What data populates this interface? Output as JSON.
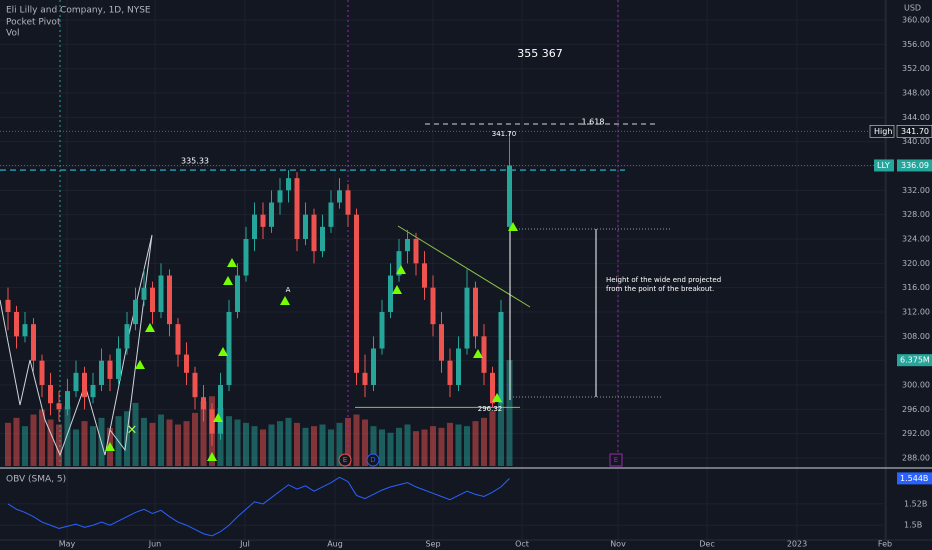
{
  "chart_data": {
    "type": "candlestick",
    "title": "Eli Lilly and Company, 1D, NYSE",
    "indicators": [
      "Pocket Pivot",
      "Vol"
    ],
    "currency": "USD",
    "ylim": [
      288,
      360
    ],
    "yticks": [
      {
        "value": 288,
        "label": "288.00"
      },
      {
        "value": 292,
        "label": "292.00"
      },
      {
        "value": 296,
        "label": "296.00"
      },
      {
        "value": 300,
        "label": "300.00"
      },
      {
        "value": 304,
        "label": "304.00"
      },
      {
        "value": 308,
        "label": "308.00"
      },
      {
        "value": 312,
        "label": "312.00"
      },
      {
        "value": 316,
        "label": "316.00"
      },
      {
        "value": 320,
        "label": "320.00"
      },
      {
        "value": 324,
        "label": "324.00"
      },
      {
        "value": 328,
        "label": "328.00"
      },
      {
        "value": 332,
        "label": "332.00"
      },
      {
        "value": 336,
        "label": "336.00"
      },
      {
        "value": 340,
        "label": "340.00"
      },
      {
        "value": 344,
        "label": "344.00"
      },
      {
        "value": 348,
        "label": "348.00"
      },
      {
        "value": 352,
        "label": "352.00"
      },
      {
        "value": 356,
        "label": "356.00"
      },
      {
        "value": 360,
        "label": "360.00"
      }
    ],
    "grid": true,
    "x_labels": [
      "May",
      "Jun",
      "Jul",
      "Aug",
      "Sep",
      "Oct",
      "Nov",
      "Dec",
      "2023",
      "Feb"
    ],
    "up_color": "#26a69a",
    "down_color": "#ef5350",
    "ohlc": [
      [
        314,
        316,
        309,
        312
      ],
      [
        312,
        313,
        306,
        308
      ],
      [
        308,
        312,
        307,
        310
      ],
      [
        310,
        311,
        302,
        304
      ],
      [
        304,
        305,
        298,
        300
      ],
      [
        300,
        302,
        295,
        297
      ],
      [
        297,
        299,
        294,
        296
      ],
      [
        296,
        301,
        295,
        299
      ],
      [
        299,
        304,
        298,
        302
      ],
      [
        302,
        303,
        296,
        298
      ],
      [
        298,
        302,
        297,
        300
      ],
      [
        300,
        306,
        299,
        304
      ],
      [
        304,
        305,
        299,
        301
      ],
      [
        301,
        308,
        300,
        306
      ],
      [
        306,
        312,
        305,
        310
      ],
      [
        310,
        316,
        309,
        314
      ],
      [
        314,
        319,
        313,
        316
      ],
      [
        316,
        317,
        310,
        312
      ],
      [
        312,
        320,
        311,
        318
      ],
      [
        318,
        319,
        308,
        310
      ],
      [
        310,
        311,
        303,
        305
      ],
      [
        305,
        307,
        300,
        302
      ],
      [
        302,
        303,
        296,
        298
      ],
      [
        298,
        300,
        294,
        296
      ],
      [
        296,
        297,
        290,
        292
      ],
      [
        292,
        302,
        291,
        300
      ],
      [
        300,
        314,
        299,
        312
      ],
      [
        312,
        320,
        311,
        318
      ],
      [
        318,
        326,
        317,
        324
      ],
      [
        324,
        330,
        322,
        328
      ],
      [
        328,
        330,
        324,
        326
      ],
      [
        326,
        332,
        325,
        330
      ],
      [
        330,
        334,
        328,
        332
      ],
      [
        332,
        335.33,
        330,
        334
      ],
      [
        334,
        335,
        322,
        324
      ],
      [
        324,
        330,
        323,
        328
      ],
      [
        328,
        329,
        320,
        322
      ],
      [
        322,
        328,
        321,
        326
      ],
      [
        326,
        332,
        325,
        330
      ],
      [
        330,
        334,
        329,
        332
      ],
      [
        332,
        333,
        326,
        328
      ],
      [
        328,
        329,
        300,
        302
      ],
      [
        302,
        305,
        298,
        300
      ],
      [
        300,
        308,
        299,
        306
      ],
      [
        306,
        314,
        305,
        312
      ],
      [
        312,
        320,
        311,
        318
      ],
      [
        318,
        324,
        317,
        322
      ],
      [
        322,
        325.5,
        320,
        324
      ],
      [
        324,
        325,
        318,
        320
      ],
      [
        320,
        322,
        314,
        316
      ],
      [
        316,
        318,
        308,
        310
      ],
      [
        310,
        312,
        302,
        304
      ],
      [
        304,
        306,
        298,
        300
      ],
      [
        300,
        308,
        299,
        306
      ],
      [
        306,
        319,
        305,
        316
      ],
      [
        316,
        317,
        306,
        308
      ],
      [
        308,
        310,
        300,
        302
      ],
      [
        302,
        303,
        296.32,
        297
      ],
      [
        297,
        314,
        296.5,
        312
      ],
      [
        326,
        341.7,
        325,
        336.09
      ]
    ],
    "high_tag": {
      "name": "High",
      "value": 341.7,
      "label": "341.70"
    },
    "last_tag": {
      "name": "LLY",
      "value": 336.09
    },
    "volume": {
      "name": "Vol",
      "last_label": "6.375M",
      "values": [
        2.6,
        2.9,
        2.4,
        3.1,
        3.4,
        2.8,
        2.5,
        3.6,
        2.2,
        2.7,
        2.4,
        2.9,
        2.3,
        3.0,
        3.3,
        3.8,
        2.9,
        2.6,
        3.1,
        2.8,
        2.5,
        2.7,
        3.2,
        3.9,
        4.2,
        3.5,
        3.0,
        2.8,
        2.6,
        2.4,
        2.2,
        2.5,
        2.7,
        2.9,
        2.6,
        2.3,
        2.4,
        2.5,
        2.2,
        2.6,
        2.9,
        3.1,
        2.8,
        2.4,
        2.2,
        2.0,
        2.3,
        2.5,
        2.1,
        2.2,
        2.4,
        2.3,
        2.6,
        2.5,
        2.4,
        2.7,
        2.9,
        3.3,
        3.8,
        6.375
      ]
    },
    "obv": {
      "name": "OBV (SMA, 5)",
      "color": "#2962ff",
      "last_label": "1.544B",
      "ylim": [
        1.488,
        1.55
      ],
      "yticks": [
        {
          "value": 1.5,
          "label": "1.5B"
        },
        {
          "value": 1.52,
          "label": "1.52B"
        }
      ],
      "values": [
        1.52,
        1.515,
        1.512,
        1.508,
        1.503,
        1.5,
        1.497,
        1.499,
        1.501,
        1.498,
        1.5,
        1.503,
        1.5,
        1.504,
        1.508,
        1.512,
        1.515,
        1.511,
        1.514,
        1.508,
        1.503,
        1.5,
        1.496,
        1.492,
        1.49,
        1.494,
        1.5,
        1.508,
        1.515,
        1.522,
        1.52,
        1.526,
        1.532,
        1.538,
        1.534,
        1.537,
        1.532,
        1.536,
        1.54,
        1.545,
        1.541,
        1.528,
        1.525,
        1.529,
        1.533,
        1.536,
        1.538,
        1.54,
        1.536,
        1.533,
        1.53,
        1.527,
        1.524,
        1.528,
        1.532,
        1.529,
        1.527,
        1.531,
        1.536,
        1.544
      ]
    },
    "annotations": {
      "target": "355  367",
      "fib": "1.618",
      "high_label": "341.70",
      "resistance": "335.33",
      "low_label": "296.32",
      "pivot": "A",
      "note": [
        "Height of the wide end projected",
        "from the point of the breakout."
      ]
    },
    "events": [
      "E",
      "D",
      "E"
    ]
  }
}
